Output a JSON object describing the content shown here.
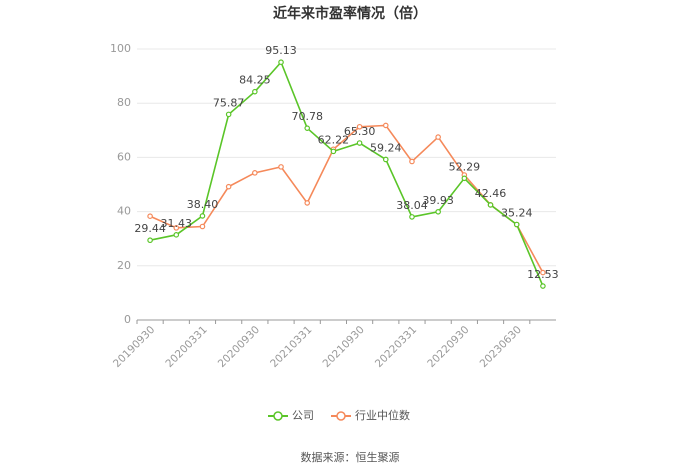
{
  "chart_data": {
    "type": "line",
    "title": "近年来市盈率情况（倍）",
    "categories": [
      "20190930",
      null,
      "20200331",
      null,
      "20200930",
      null,
      "20210331",
      null,
      "20210930",
      null,
      "20220331",
      null,
      "20220930",
      null,
      "20230630",
      null
    ],
    "series": [
      {
        "name": "公司",
        "color": "#5ac528",
        "values": [
          29.44,
          31.43,
          38.4,
          75.87,
          84.25,
          95.13,
          70.78,
          62.22,
          65.3,
          59.24,
          38.04,
          39.93,
          52.29,
          42.46,
          35.24,
          12.53
        ],
        "value_labels": [
          "29.44",
          "31.43",
          "38.40",
          "75.87",
          "84.25",
          "95.13",
          "70.78",
          "62.22",
          "65.30",
          "59.24",
          "38.04",
          "39.93",
          "52.29",
          "42.46",
          "35.24",
          "12.53"
        ]
      },
      {
        "name": "行业中位数",
        "color": "#f5895a",
        "values": [
          38.3,
          34.0,
          34.5,
          49.2,
          54.3,
          56.5,
          43.2,
          63.0,
          71.3,
          71.8,
          58.5,
          67.5,
          53.5,
          42.5,
          35.2,
          17.5
        ]
      }
    ],
    "ylim": [
      0,
      100
    ],
    "yticks": [
      0,
      20,
      40,
      60,
      80,
      100
    ],
    "grid": true,
    "source": "数据来源：恒生聚源"
  }
}
